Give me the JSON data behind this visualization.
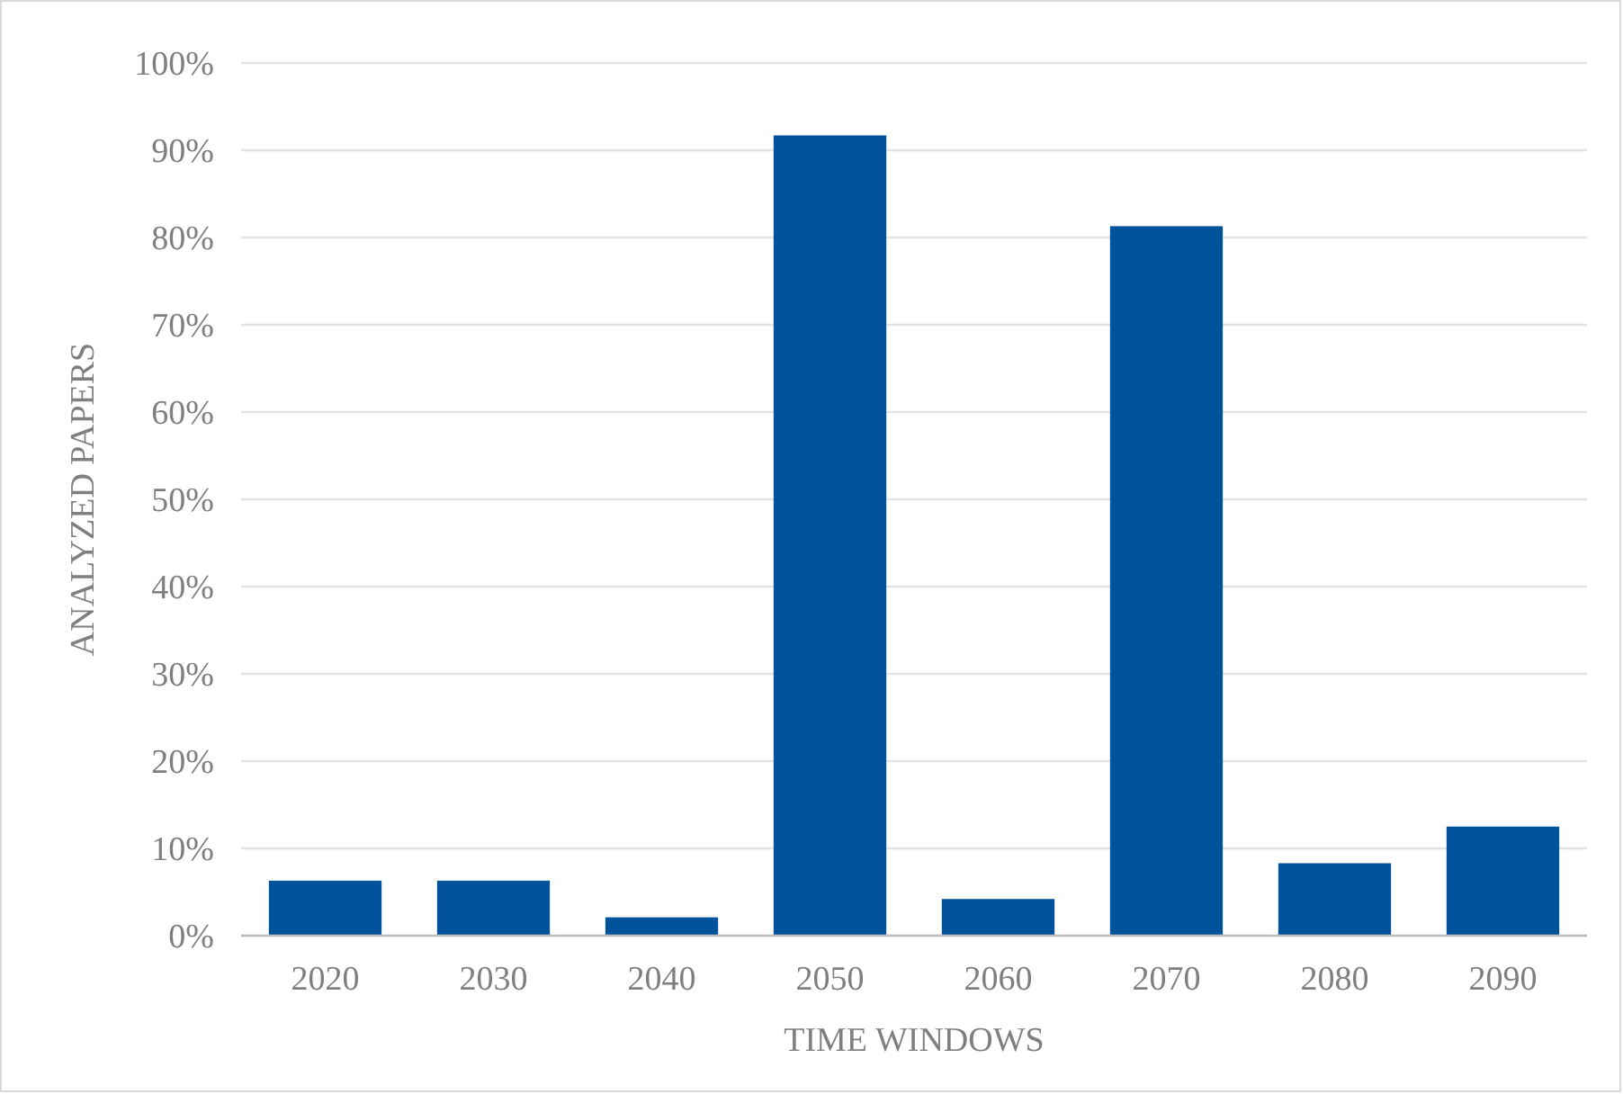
{
  "chart_data": {
    "type": "bar",
    "xlabel": "TIME WINDOWS",
    "ylabel": "ANALYZED PAPERS",
    "categories": [
      "2020",
      "2030",
      "2040",
      "2050",
      "2060",
      "2070",
      "2080",
      "2090"
    ],
    "values": [
      6.3,
      6.3,
      2.1,
      91.7,
      4.2,
      81.3,
      8.3,
      12.5
    ],
    "color": "#00529b",
    "ylim": [
      0,
      100
    ],
    "yticks": [
      {
        "value": 0,
        "label": "0%"
      },
      {
        "value": 10,
        "label": "10%"
      },
      {
        "value": 20,
        "label": "20%"
      },
      {
        "value": 30,
        "label": "30%"
      },
      {
        "value": 40,
        "label": "40%"
      },
      {
        "value": 50,
        "label": "50%"
      },
      {
        "value": 60,
        "label": "60%"
      },
      {
        "value": 70,
        "label": "70%"
      },
      {
        "value": 80,
        "label": "80%"
      },
      {
        "value": 90,
        "label": "90%"
      },
      {
        "value": 100,
        "label": "100%"
      }
    ],
    "grid": "y"
  }
}
